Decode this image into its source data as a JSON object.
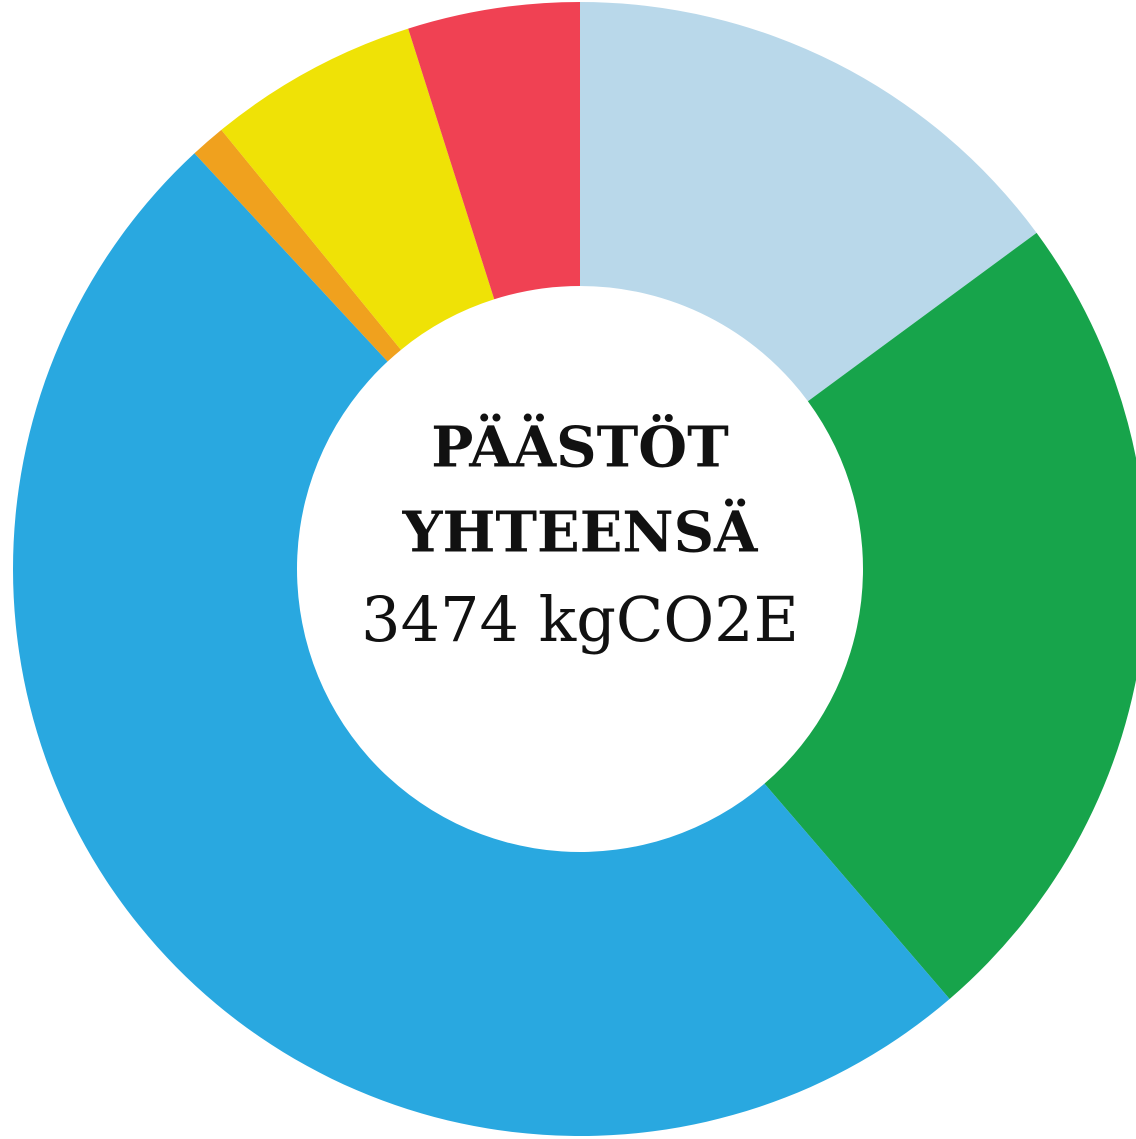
{
  "chart_data": {
    "type": "donut",
    "values": [
      14.9,
      23.8,
      49.4,
      1.0,
      6.0,
      4.9
    ],
    "colors": [
      "#b9d8ea",
      "#17a44b",
      "#29a8e0",
      "#f0a11e",
      "#efe206",
      "#f04153"
    ],
    "center_text": [
      "PÄÄSTÖT",
      "YHTEENSÄ",
      "3474 kgCO2E"
    ]
  }
}
